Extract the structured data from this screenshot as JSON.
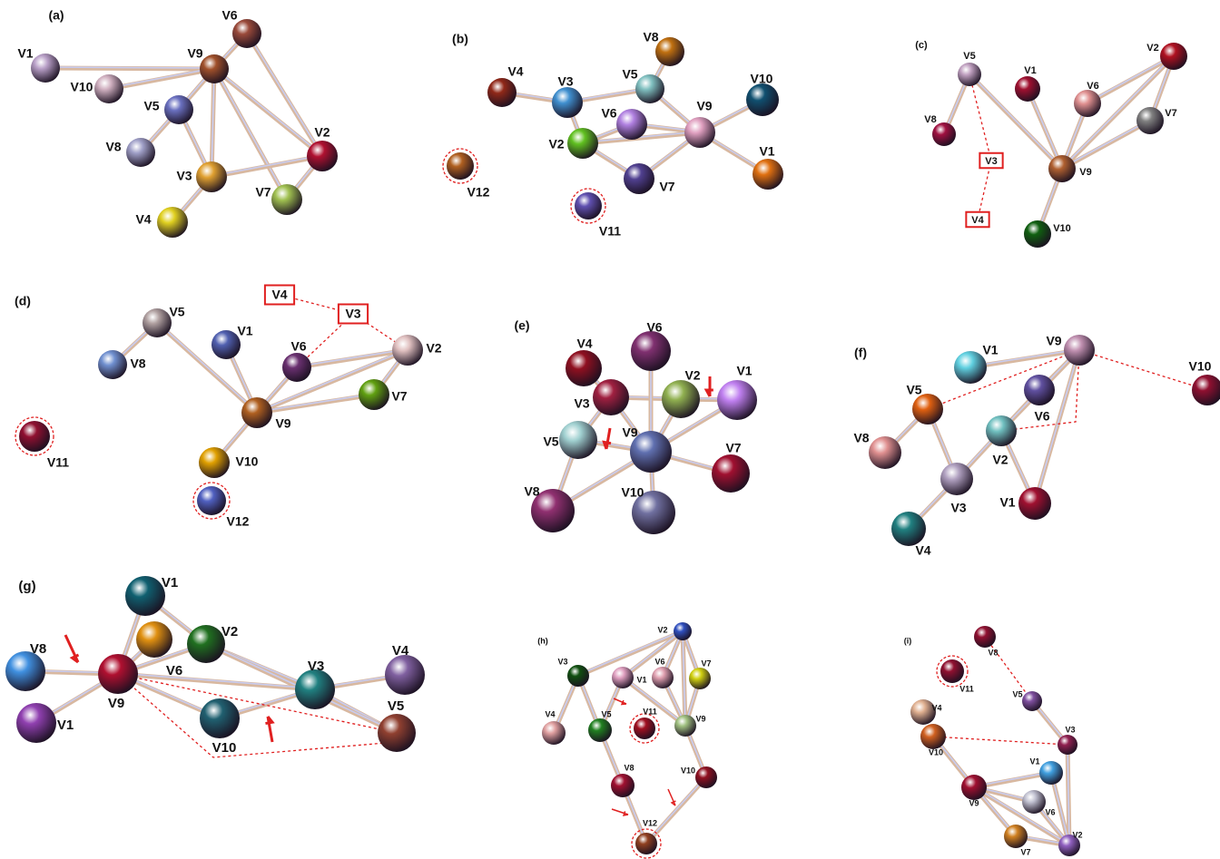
{
  "panels": [
    {
      "label": "(a)",
      "nodes": [
        "V1",
        "V6",
        "V9",
        "V10",
        "V5",
        "V2",
        "V8",
        "V3",
        "V7",
        "V4"
      ]
    },
    {
      "label": "(b)",
      "nodes": [
        "V8",
        "V4",
        "V3",
        "V5",
        "V10",
        "V6",
        "V9",
        "V2",
        "V1",
        "V7",
        "V12",
        "V11"
      ]
    },
    {
      "label": "(c)",
      "nodes": [
        "V5",
        "V1",
        "V2",
        "V6",
        "V7",
        "V8",
        "V9",
        "V10"
      ],
      "boxes": [
        "V3",
        "V4"
      ]
    },
    {
      "label": "(d)",
      "nodes": [
        "V5",
        "V8",
        "V1",
        "V6",
        "V2",
        "V7",
        "V9",
        "V10",
        "V12",
        "V11"
      ],
      "boxes": [
        "V4",
        "V3"
      ]
    },
    {
      "label": "(e)",
      "nodes": [
        "V6",
        "V4",
        "V2",
        "V1",
        "V3",
        "V9",
        "V5",
        "V7",
        "V8",
        "V10"
      ]
    },
    {
      "label": "(f)",
      "nodes": [
        "V9",
        "V1",
        "V10",
        "V5",
        "V6",
        "V8",
        "V2",
        "V3",
        "V1",
        "V4"
      ]
    },
    {
      "label": "(g)",
      "nodes": [
        "V1",
        "V6",
        "V2",
        "V8",
        "V9",
        "V3",
        "V4",
        "V1",
        "V10",
        "V5"
      ]
    },
    {
      "label": "(h)",
      "nodes": [
        "V2",
        "V3",
        "V6",
        "V7",
        "V1",
        "V11",
        "V9",
        "V5",
        "V4",
        "V8",
        "V10",
        "V12"
      ]
    },
    {
      "label": "(i)",
      "nodes": [
        "V8",
        "V11",
        "V5",
        "V4",
        "V3",
        "V10",
        "V1",
        "V9",
        "V6",
        "V7",
        "V2"
      ]
    }
  ]
}
